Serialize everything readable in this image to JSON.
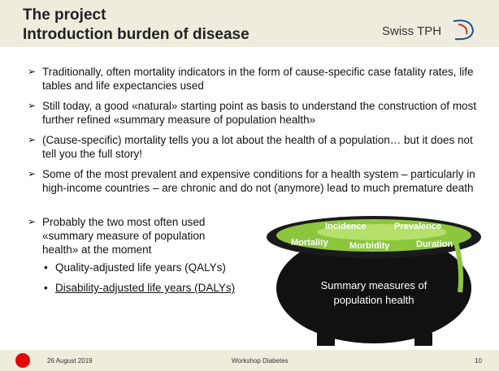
{
  "header": {
    "title": "The project",
    "subtitle": "Introduction burden of disease",
    "logo": "Swiss TPH"
  },
  "bullets": [
    "Traditionally, often mortality indicators in the form of cause-specific case fatality rates, life tables and life expectancies used",
    "Still today, a good «natural» starting point as basis to understand the construction of most further refined «summary measure of population health»",
    "(Cause-specific) mortality tells you a lot about the health of a population… but it does not tell you the full story!",
    "Some of the most prevalent and expensive conditions for a health system – particularly in high-income countries – are chronic and do not (anymore) lead to much premature death",
    "Probably the two most often used «summary measure of population health» at the moment"
  ],
  "sub_bullets": [
    "Quality-adjusted life years (QALYs)",
    "Disability-adjusted life years (DALYs)"
  ],
  "cauldron": {
    "words": [
      "Incidence",
      "Prevalence",
      "Mortality",
      "Morbidity",
      "Duration"
    ],
    "caption_lines": [
      "Summary measures of",
      "population health"
    ]
  },
  "footer": {
    "date": "26 August 2019",
    "event": "Workshop Diabetes",
    "page": "10"
  }
}
